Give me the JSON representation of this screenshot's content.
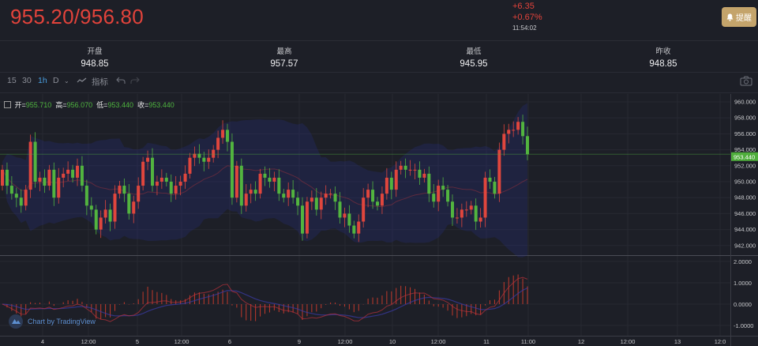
{
  "header": {
    "price": "955.20/956.80",
    "change": "+6.35",
    "change_pct": "+0.67%",
    "time": "11:54:02",
    "alert_label": "提醒"
  },
  "stats": [
    {
      "label": "开盘",
      "value": "948.85"
    },
    {
      "label": "最高",
      "value": "957.57"
    },
    {
      "label": "最低",
      "value": "945.95"
    },
    {
      "label": "昨收",
      "value": "948.85"
    }
  ],
  "toolbar": {
    "intervals": [
      "15",
      "30",
      "1h",
      "D"
    ],
    "active_interval": "1h",
    "indicators_label": "指标"
  },
  "legend": {
    "open_label": "开=",
    "open": "955.710",
    "high_label": "高=",
    "high": "956.070",
    "low_label": "低=",
    "low": "953.440",
    "close_label": "收=",
    "close": "953.440"
  },
  "colors": {
    "up": "#e0463d",
    "down": "#52b43f",
    "background": "#1d1f27",
    "accent": "#4a9fe0",
    "alert": "#c4a46b"
  },
  "chart_data": {
    "type": "candlestick",
    "price_axis": {
      "ticks": [
        "960.000",
        "958.000",
        "956.000",
        "954.000",
        "952.000",
        "950.000",
        "948.000",
        "946.000",
        "944.000",
        "942.000"
      ],
      "range": [
        941.5,
        960.5
      ]
    },
    "last_price": "953.440",
    "macd_axis": {
      "ticks": [
        "2.0000",
        "1.0000",
        "0.0000",
        "-1.0000"
      ]
    },
    "x_ticks": [
      "4",
      "12:00",
      "5",
      "12:00",
      "6",
      "9",
      "12:00",
      "10",
      "12:00",
      "11",
      "11:00",
      "12",
      "12:00",
      "13",
      "12:0"
    ],
    "first_open": 949.5,
    "close": [
      951.5,
      949.5,
      948.5,
      948,
      947,
      949,
      955,
      950,
      950.5,
      949.5,
      951.5,
      948,
      950.5,
      951,
      951.5,
      950.5,
      952,
      949.5,
      947,
      946.5,
      944,
      945.5,
      946.5,
      945,
      948.5,
      949.5,
      948.5,
      946,
      947.5,
      949.5,
      952.5,
      953,
      949.5,
      950,
      950.5,
      950,
      948.5,
      949.5,
      950,
      951,
      953,
      953.5,
      953,
      952.5,
      953,
      954,
      955.5,
      956.5,
      955,
      948,
      952,
      947,
      948.5,
      949,
      948.5,
      951,
      950.5,
      950,
      950.5,
      948.5,
      948,
      949,
      948,
      947,
      943.5,
      947.5,
      948,
      946.5,
      948,
      948.5,
      948.5,
      947.5,
      945.5,
      946,
      944.5,
      943.5,
      945,
      948,
      949,
      947.5,
      947,
      948.5,
      950.5,
      949,
      951.5,
      952,
      951.5,
      951.5,
      951.5,
      950.5,
      951,
      948.5,
      947.5,
      949.5,
      949,
      947.5,
      945.5,
      945.5,
      946.5,
      946.5,
      947,
      945,
      945.5,
      950.5,
      950,
      948.5,
      954,
      956,
      956.5,
      956.5,
      957.5,
      955.71,
      953.44
    ],
    "footer": "Chart by TradingView"
  }
}
